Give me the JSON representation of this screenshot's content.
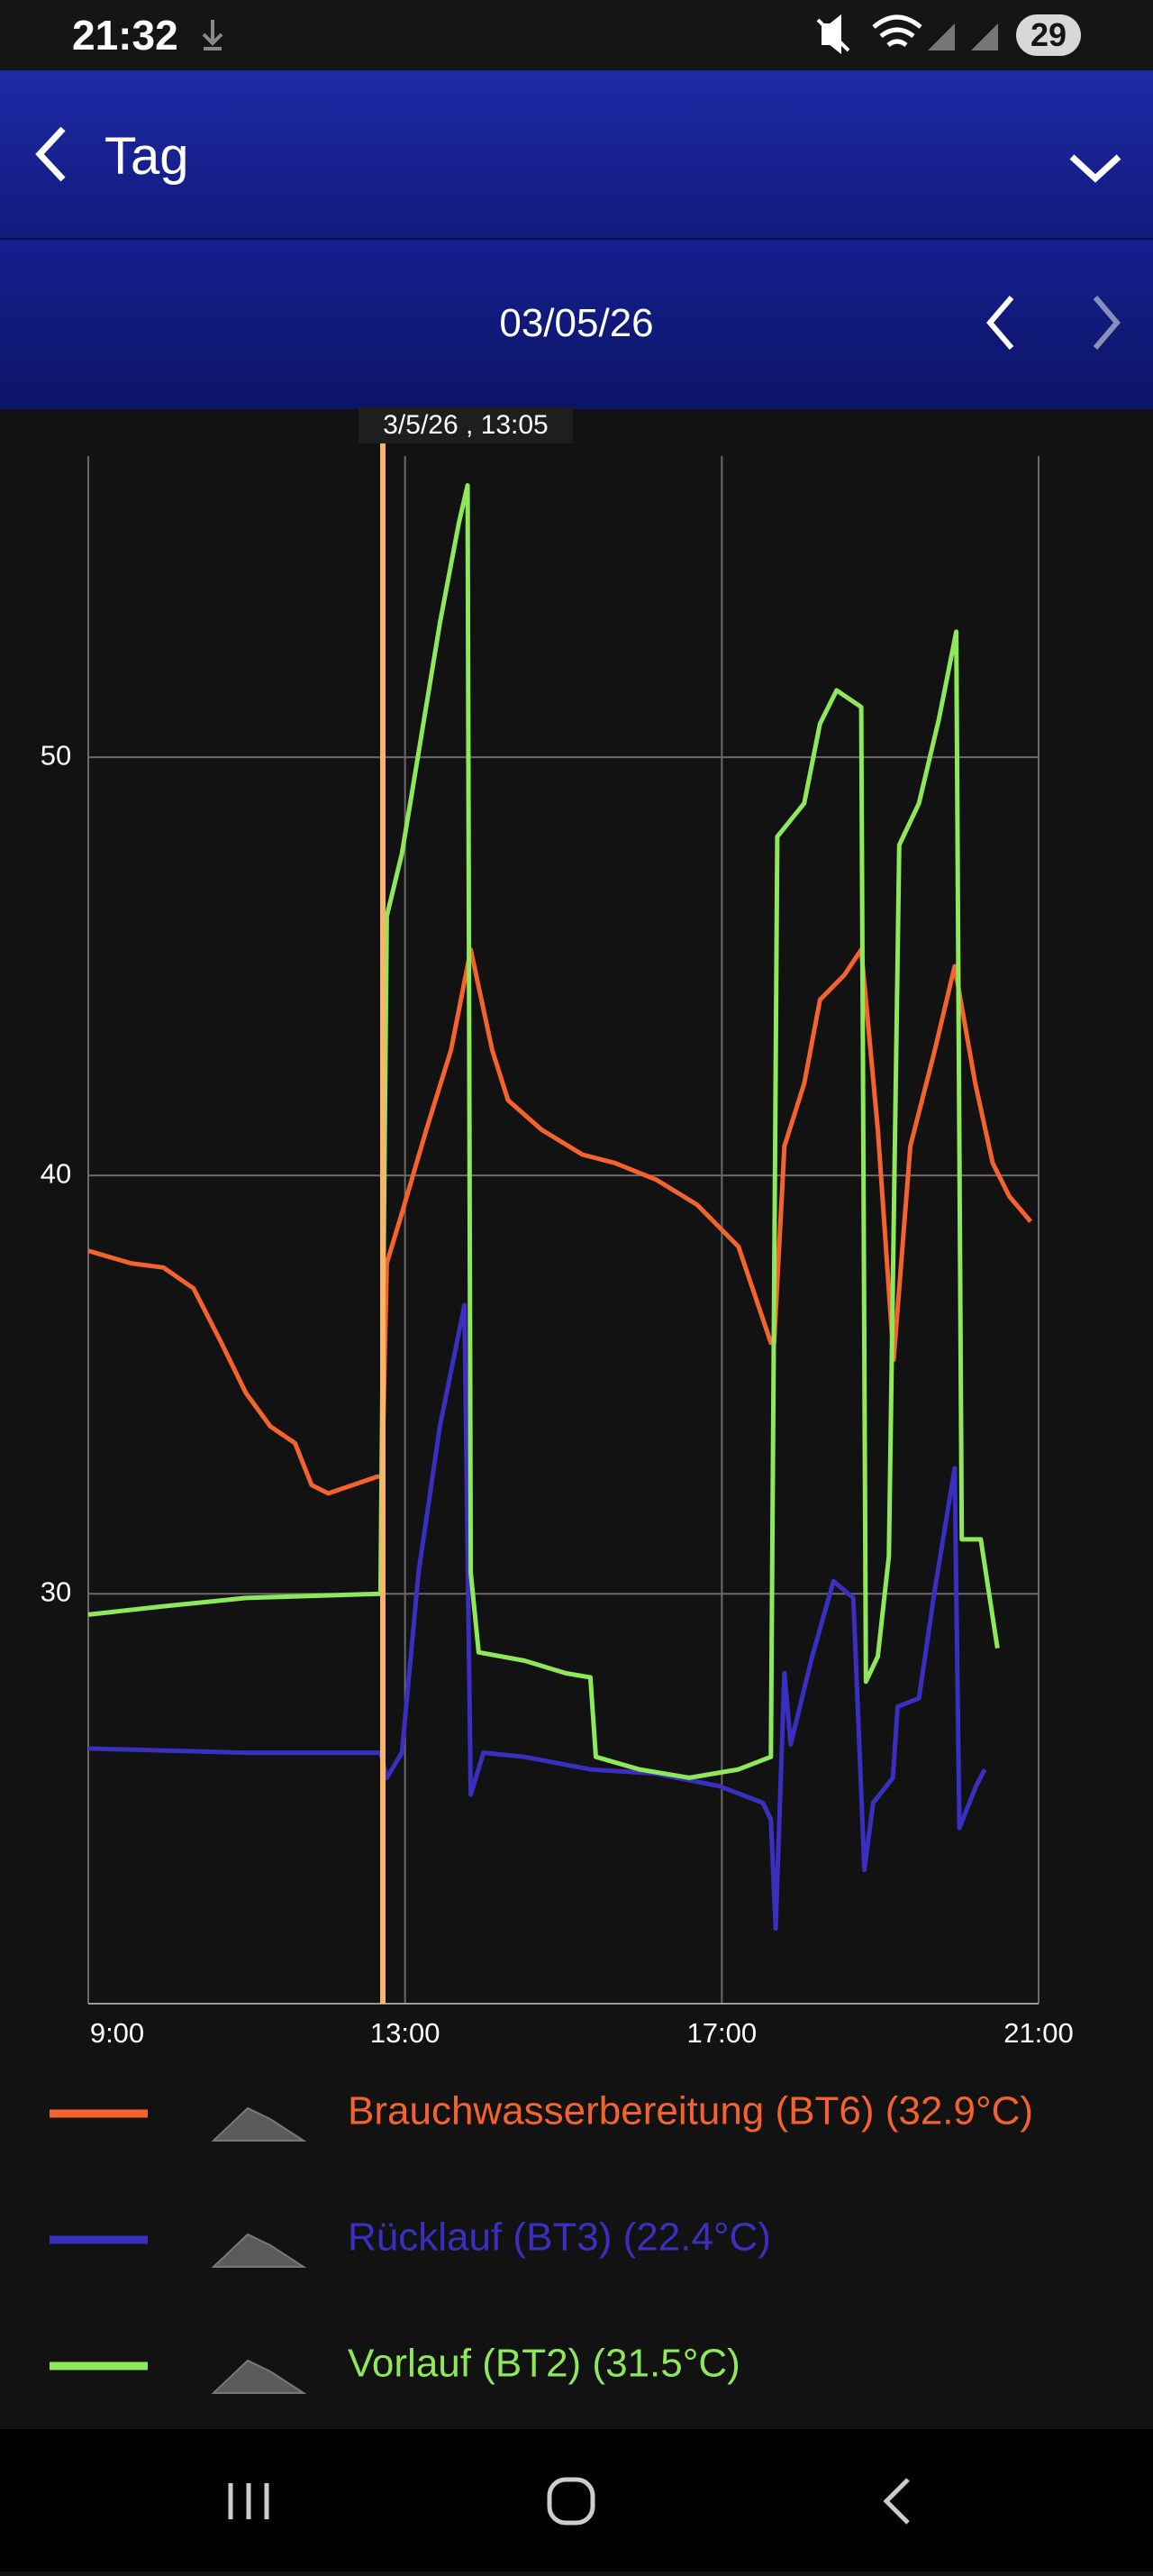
{
  "status_bar": {
    "time": "21:32",
    "battery": "29"
  },
  "header": {
    "title": "Tag"
  },
  "date_bar": {
    "date": "03/05/26"
  },
  "cursor": {
    "label": "3/5/26 , 13:05"
  },
  "chart_data": {
    "type": "line",
    "xlim": [
      9,
      21
    ],
    "xticks": [
      {
        "value": 9,
        "label": "9:00"
      },
      {
        "value": 13,
        "label": "13:00"
      },
      {
        "value": 17,
        "label": "17:00"
      },
      {
        "value": 21,
        "label": "21:00"
      }
    ],
    "ylim": [
      20.2,
      57.2
    ],
    "yticks": [
      30,
      40,
      50
    ],
    "grid": true,
    "series": [
      {
        "name": "Brauchwasserbereitung (BT6) (32.9°C)",
        "color": "#f4622e",
        "x": [
          9.0,
          9.54,
          9.95,
          10.33,
          10.68,
          10.99,
          11.3,
          11.61,
          11.82,
          12.03,
          12.34,
          12.65,
          12.71,
          12.77,
          12.96,
          13.27,
          13.58,
          13.83,
          14.1,
          14.3,
          14.72,
          15.24,
          15.65,
          16.17,
          16.69,
          17.21,
          17.62,
          17.66,
          17.79,
          18.04,
          18.24,
          18.55,
          18.76,
          18.97,
          19.17,
          19.38,
          19.69,
          19.94,
          20.2,
          20.42,
          20.63,
          20.9
        ],
        "values": [
          38.2,
          37.9,
          37.8,
          37.3,
          36.0,
          34.8,
          34.0,
          33.6,
          32.6,
          32.4,
          32.6,
          32.8,
          32.8,
          37.9,
          39.1,
          41.1,
          43.0,
          45.4,
          43.0,
          41.8,
          41.1,
          40.5,
          40.3,
          39.9,
          39.3,
          38.3,
          36.0,
          36.0,
          40.7,
          42.2,
          44.2,
          44.8,
          45.4,
          41.1,
          35.6,
          40.7,
          43.0,
          45.0,
          42.2,
          40.3,
          39.5,
          38.9
        ]
      },
      {
        "name": "Rücklauf (BT3) (22.4°C)",
        "color": "#3a2fc0",
        "x": [
          9.0,
          10.99,
          12.69,
          12.77,
          12.96,
          13.17,
          13.44,
          13.75,
          13.83,
          13.99,
          14.51,
          15.34,
          16.17,
          16.97,
          17.52,
          17.62,
          17.68,
          17.79,
          17.87,
          18.14,
          18.41,
          18.66,
          18.8,
          18.91,
          19.16,
          19.22,
          19.49,
          19.69,
          19.94,
          20.0,
          20.21,
          20.32
        ],
        "values": [
          26.3,
          26.2,
          26.2,
          25.6,
          26.2,
          30.5,
          34.0,
          36.9,
          25.2,
          26.2,
          26.1,
          25.8,
          25.7,
          25.4,
          25.0,
          24.6,
          22.0,
          28.1,
          26.4,
          28.5,
          30.3,
          29.9,
          23.4,
          25.0,
          25.6,
          27.3,
          27.5,
          30.1,
          33.0,
          24.4,
          25.4,
          25.8
        ]
      },
      {
        "name": "Vorlauf (BT2) (31.5°C)",
        "color": "#8ee85a",
        "x": [
          9.0,
          9.95,
          10.99,
          12.69,
          12.77,
          12.96,
          13.17,
          13.44,
          13.68,
          13.79,
          13.83,
          13.93,
          14.51,
          15.03,
          15.34,
          15.41,
          15.96,
          16.59,
          17.21,
          17.62,
          17.7,
          18.04,
          18.24,
          18.45,
          18.76,
          18.82,
          18.97,
          19.11,
          19.24,
          19.49,
          19.74,
          19.96,
          20.03,
          20.27,
          20.48
        ],
        "values": [
          29.5,
          29.7,
          29.9,
          30.0,
          46.2,
          47.7,
          50.1,
          53.2,
          55.6,
          56.5,
          30.5,
          28.6,
          28.4,
          28.1,
          28.0,
          26.1,
          25.8,
          25.6,
          25.8,
          26.1,
          48.1,
          48.9,
          50.8,
          51.6,
          51.2,
          27.9,
          28.5,
          30.9,
          47.9,
          48.9,
          50.9,
          53.0,
          31.3,
          31.3,
          28.7
        ]
      }
    ]
  }
}
